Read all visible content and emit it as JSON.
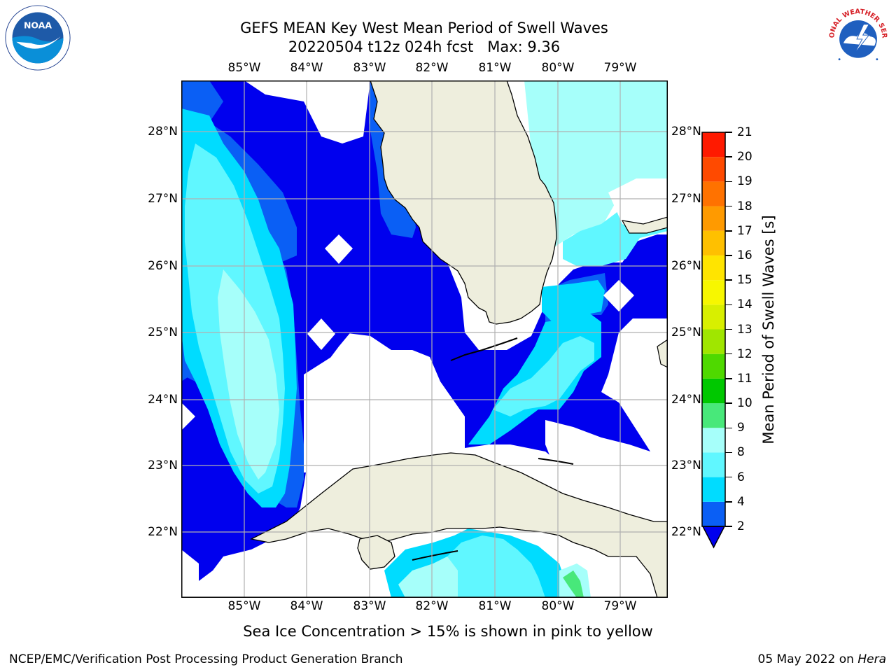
{
  "header": {
    "title_line1": "GEFS MEAN Key West Mean Period of Swell Waves",
    "title_line2": "20220504 t12z 024h fcst   Max: 9.36"
  },
  "logos": {
    "left": "noaa-logo",
    "right": "nws-logo",
    "nws_text": "NATIONAL WEATHER SERVICE"
  },
  "map": {
    "lon_labels": [
      "85°W",
      "84°W",
      "83°W",
      "82°W",
      "81°W",
      "80°W",
      "79°W"
    ],
    "lat_labels": [
      "28°N",
      "27°N",
      "26°N",
      "25°N",
      "24°N",
      "23°N",
      "22°N"
    ],
    "colors": {
      "land": "#eeeedd",
      "ocean_no_data": "#ffffff",
      "gridline": "#b0b0b0",
      "coastline": "#000000"
    }
  },
  "colorbar": {
    "label": "Mean Period of Swell Waves [s]",
    "ticks": [
      "2",
      "4",
      "6",
      "8",
      "9",
      "10",
      "11",
      "12",
      "13",
      "14",
      "15",
      "16",
      "17",
      "18",
      "19",
      "20",
      "21"
    ],
    "colors": [
      "#0a5ff5",
      "#00dcff",
      "#60f7ff",
      "#a6fffa",
      "#48e87a",
      "#00c800",
      "#4fd900",
      "#a0e600",
      "#d8ef00",
      "#f7f700",
      "#ffe400",
      "#ffc000",
      "#ff9a00",
      "#ff7200",
      "#ff4a00",
      "#ff1a00"
    ],
    "under_color": "#0000ee"
  },
  "footer": {
    "note": "Sea Ice Concentration > 15% is shown in pink to yellow",
    "credit": "NCEP/EMC/Verification Post Processing Product Generation Branch",
    "date": "05 May 2022 on ",
    "host": "Hera"
  }
}
